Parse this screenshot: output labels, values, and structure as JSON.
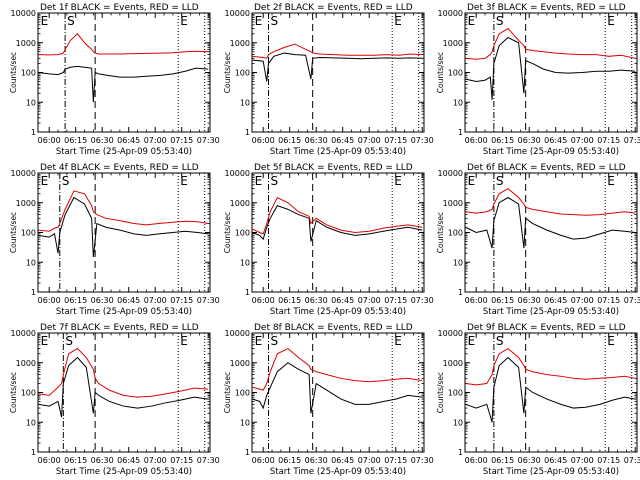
{
  "figure": {
    "start_time": "Start Time (25-Apr-09 05:53:40)",
    "ylabel": "Counts/sec",
    "x_ticks": [
      "06:00",
      "06:15",
      "06:30",
      "06:45",
      "07:00",
      "07:15",
      "07:30"
    ],
    "y_ticks": [
      "1",
      "10",
      "100",
      "1000",
      "10000"
    ],
    "colors": {
      "events": "#000000",
      "lld": "#e00000",
      "axes": "#000000"
    }
  },
  "chart_data": [
    {
      "type": "line",
      "title": "Det 1f BLACK = Events, RED = LLD",
      "xlabel": "Start Time (25-Apr-09 05:53:40)",
      "ylabel": "Counts/sec",
      "y_scale": "log",
      "ylim": [
        1,
        10000
      ],
      "xlim": [
        "05:53:40",
        "07:31:00"
      ],
      "vlines": {
        "dash_dot": [
          "06:09"
        ],
        "dashed": [
          "06:26"
        ],
        "dotted": [
          "07:13",
          "07:28"
        ]
      },
      "markers": [
        {
          "label": "S",
          "x": "06:09"
        },
        {
          "label": "E",
          "x": "07:13"
        },
        {
          "label": "E",
          "x": "05:54"
        }
      ],
      "x": [
        "05:54",
        "06:00",
        "06:05",
        "06:08",
        "06:09",
        "06:12",
        "06:16",
        "06:20",
        "06:24",
        "06:25",
        "06:26",
        "06:28",
        "06:33",
        "06:40",
        "06:48",
        "06:55",
        "07:03",
        "07:10",
        "07:17",
        "07:23",
        "07:30"
      ],
      "series": [
        {
          "name": "Events",
          "values": [
            100,
            90,
            85,
            100,
            130,
            150,
            160,
            150,
            140,
            10,
            100,
            90,
            80,
            70,
            70,
            75,
            80,
            90,
            110,
            140,
            130
          ]
        },
        {
          "name": "LLD",
          "values": [
            400,
            390,
            400,
            450,
            600,
            1200,
            2000,
            1000,
            600,
            500,
            450,
            420,
            420,
            420,
            430,
            440,
            450,
            460,
            500,
            520,
            500
          ]
        }
      ]
    },
    {
      "type": "line",
      "title": "Det 2f BLACK = Events, RED = LLD",
      "xlabel": "Start Time (25-Apr-09 05:53:40)",
      "ylabel": "Counts/sec",
      "y_scale": "log",
      "ylim": [
        1,
        10000
      ],
      "xlim": [
        "05:53:40",
        "07:31:00"
      ],
      "vlines": {
        "dash_dot": [
          "06:03"
        ],
        "dashed": [
          "06:28"
        ],
        "dotted": [
          "07:13",
          "07:28"
        ]
      },
      "markers": [
        {
          "label": "S",
          "x": "06:03"
        },
        {
          "label": "E",
          "x": "07:13"
        },
        {
          "label": "E",
          "x": "05:54"
        }
      ],
      "x": [
        "05:54",
        "06:00",
        "06:02",
        "06:03",
        "06:06",
        "06:12",
        "06:18",
        "06:24",
        "06:27",
        "06:28",
        "06:32",
        "06:40",
        "06:48",
        "06:55",
        "07:03",
        "07:10",
        "07:17",
        "07:23",
        "07:30"
      ],
      "series": [
        {
          "name": "Events",
          "values": [
            260,
            240,
            50,
            200,
            350,
            450,
            400,
            380,
            60,
            300,
            320,
            310,
            300,
            290,
            300,
            310,
            300,
            310,
            300
          ]
        },
        {
          "name": "LLD",
          "values": [
            350,
            320,
            300,
            400,
            500,
            700,
            900,
            600,
            500,
            450,
            420,
            400,
            380,
            380,
            380,
            400,
            380,
            420,
            400
          ]
        }
      ]
    },
    {
      "type": "line",
      "title": "Det 3f BLACK = Events, RED = LLD",
      "xlabel": "Start Time (25-Apr-09 05:53:40)",
      "ylabel": "Counts/sec",
      "y_scale": "log",
      "ylim": [
        1,
        10000
      ],
      "xlim": [
        "05:53:40",
        "07:31:00"
      ],
      "vlines": {
        "dash_dot": [
          "06:10"
        ],
        "dashed": [
          "06:28"
        ],
        "dotted": [
          "07:13",
          "07:28"
        ]
      },
      "markers": [
        {
          "label": "S",
          "x": "06:10"
        },
        {
          "label": "E",
          "x": "07:13"
        },
        {
          "label": "E",
          "x": "05:54"
        }
      ],
      "x": [
        "05:54",
        "06:00",
        "06:05",
        "06:08",
        "06:09",
        "06:10",
        "06:13",
        "06:18",
        "06:24",
        "06:27",
        "06:28",
        "06:32",
        "06:38",
        "06:45",
        "06:52",
        "07:00",
        "07:08",
        "07:15",
        "07:22",
        "07:30"
      ],
      "series": [
        {
          "name": "Events",
          "values": [
            60,
            50,
            55,
            70,
            12,
            200,
            800,
            1500,
            1000,
            20,
            250,
            200,
            130,
            100,
            95,
            100,
            110,
            110,
            120,
            110
          ]
        },
        {
          "name": "LLD",
          "values": [
            300,
            280,
            300,
            400,
            500,
            800,
            2000,
            3000,
            1200,
            800,
            600,
            550,
            500,
            450,
            420,
            400,
            400,
            350,
            380,
            300
          ]
        }
      ]
    },
    {
      "type": "line",
      "title": "Det 4f BLACK = Events, RED = LLD",
      "xlabel": "Start Time (25-Apr-09 05:53:40)",
      "ylabel": "Counts/sec",
      "y_scale": "log",
      "ylim": [
        1,
        10000
      ],
      "xlim": [
        "05:53:40",
        "07:31:00"
      ],
      "vlines": {
        "dash_dot": [
          "06:06"
        ],
        "dashed": [
          "06:26"
        ],
        "dotted": [
          "07:13",
          "07:28"
        ]
      },
      "markers": [
        {
          "label": "S",
          "x": "06:06"
        },
        {
          "label": "E",
          "x": "07:13"
        },
        {
          "label": "E",
          "x": "05:54"
        }
      ],
      "x": [
        "05:54",
        "06:00",
        "06:03",
        "06:05",
        "06:06",
        "06:09",
        "06:14",
        "06:20",
        "06:24",
        "06:25",
        "06:27",
        "06:32",
        "06:40",
        "06:48",
        "06:55",
        "07:02",
        "07:10",
        "07:17",
        "07:24",
        "07:30"
      ],
      "series": [
        {
          "name": "Events",
          "values": [
            80,
            70,
            90,
            20,
            100,
            400,
            1500,
            900,
            300,
            15,
            200,
            150,
            120,
            90,
            80,
            90,
            100,
            110,
            100,
            90
          ]
        },
        {
          "name": "LLD",
          "values": [
            120,
            110,
            140,
            150,
            200,
            600,
            2500,
            2000,
            800,
            500,
            400,
            300,
            250,
            200,
            180,
            200,
            220,
            240,
            230,
            200
          ]
        }
      ]
    },
    {
      "type": "line",
      "title": "Det 5f BLACK = Events, RED = LLD",
      "xlabel": "Start Time (25-Apr-09 05:53:40)",
      "ylabel": "Counts/sec",
      "y_scale": "log",
      "ylim": [
        1,
        10000
      ],
      "xlim": [
        "05:53:40",
        "07:31:00"
      ],
      "vlines": {
        "dash_dot": [
          "06:03"
        ],
        "dashed": [
          "06:28"
        ],
        "dotted": [
          "07:13",
          "07:28"
        ]
      },
      "markers": [
        {
          "label": "S",
          "x": "06:03"
        },
        {
          "label": "E",
          "x": "07:13"
        },
        {
          "label": "E",
          "x": "05:54"
        }
      ],
      "x": [
        "05:54",
        "05:58",
        "06:00",
        "06:02",
        "06:04",
        "06:08",
        "06:14",
        "06:20",
        "06:26",
        "06:27",
        "06:30",
        "06:36",
        "06:44",
        "06:52",
        "07:00",
        "07:08",
        "07:15",
        "07:22",
        "07:30"
      ],
      "series": [
        {
          "name": "Events",
          "values": [
            100,
            80,
            60,
            150,
            300,
            800,
            600,
            400,
            300,
            50,
            250,
            150,
            100,
            80,
            90,
            110,
            130,
            150,
            120
          ]
        },
        {
          "name": "LLD",
          "values": [
            130,
            100,
            90,
            200,
            500,
            1500,
            1000,
            500,
            350,
            200,
            300,
            180,
            120,
            100,
            110,
            140,
            160,
            180,
            150
          ]
        }
      ]
    },
    {
      "type": "line",
      "title": "Det 6f BLACK = Events, RED = LLD",
      "xlabel": "Start Time (25-Apr-09 05:53:40)",
      "ylabel": "Counts/sec",
      "y_scale": "log",
      "ylim": [
        1,
        10000
      ],
      "xlim": [
        "05:53:40",
        "07:31:00"
      ],
      "vlines": {
        "dash_dot": [
          "06:10"
        ],
        "dashed": [
          "06:28"
        ],
        "dotted": [
          "07:13",
          "07:28"
        ]
      },
      "markers": [
        {
          "label": "S",
          "x": "06:10"
        },
        {
          "label": "E",
          "x": "07:13"
        },
        {
          "label": "E",
          "x": "05:54"
        }
      ],
      "x": [
        "05:54",
        "06:00",
        "06:06",
        "06:09",
        "06:10",
        "06:13",
        "06:18",
        "06:24",
        "06:27",
        "06:28",
        "06:32",
        "06:40",
        "06:48",
        "06:55",
        "07:02",
        "07:10",
        "07:17",
        "07:24",
        "07:30"
      ],
      "series": [
        {
          "name": "Events",
          "values": [
            150,
            100,
            120,
            30,
            250,
            1000,
            1500,
            900,
            30,
            300,
            200,
            120,
            80,
            60,
            65,
            90,
            120,
            110,
            100
          ]
        },
        {
          "name": "LLD",
          "values": [
            500,
            450,
            500,
            600,
            900,
            2000,
            3000,
            1500,
            900,
            700,
            600,
            500,
            420,
            400,
            380,
            400,
            450,
            500,
            450
          ]
        }
      ]
    },
    {
      "type": "line",
      "title": "Det 7f BLACK = Events, RED = LLD",
      "xlabel": "Start Time (25-Apr-09 05:53:40)",
      "ylabel": "Counts/sec",
      "y_scale": "log",
      "ylim": [
        1,
        10000
      ],
      "xlim": [
        "05:53:40",
        "07:31:00"
      ],
      "vlines": {
        "dash_dot": [
          "06:08"
        ],
        "dashed": [
          "06:26"
        ],
        "dotted": [
          "07:13",
          "07:28"
        ]
      },
      "markers": [
        {
          "label": "S",
          "x": "06:08"
        },
        {
          "label": "E",
          "x": "07:13"
        },
        {
          "label": "E",
          "x": "05:54"
        }
      ],
      "x": [
        "05:54",
        "06:00",
        "06:05",
        "06:07",
        "06:08",
        "06:11",
        "06:16",
        "06:21",
        "06:25",
        "06:26",
        "06:28",
        "06:34",
        "06:42",
        "06:50",
        "06:58",
        "07:06",
        "07:14",
        "07:22",
        "07:30"
      ],
      "series": [
        {
          "name": "Events",
          "values": [
            40,
            35,
            50,
            15,
            200,
            800,
            1500,
            700,
            20,
            100,
            80,
            50,
            35,
            30,
            35,
            45,
            55,
            70,
            60
          ]
        },
        {
          "name": "LLD",
          "values": [
            90,
            80,
            150,
            200,
            400,
            2000,
            3000,
            1500,
            600,
            300,
            200,
            120,
            80,
            70,
            75,
            90,
            110,
            140,
            130
          ]
        }
      ]
    },
    {
      "type": "line",
      "title": "Det 8f BLACK = Events, RED = LLD",
      "xlabel": "Start Time (25-Apr-09 05:53:40)",
      "ylabel": "Counts/sec",
      "y_scale": "log",
      "ylim": [
        1,
        10000
      ],
      "xlim": [
        "05:53:40",
        "07:31:00"
      ],
      "vlines": {
        "dash_dot": [
          "06:03"
        ],
        "dashed": [
          "06:28"
        ],
        "dotted": [
          "07:13",
          "07:28"
        ]
      },
      "markers": [
        {
          "label": "S",
          "x": "06:03"
        },
        {
          "label": "E",
          "x": "07:13"
        },
        {
          "label": "E",
          "x": "05:54"
        }
      ],
      "x": [
        "05:54",
        "05:58",
        "06:00",
        "06:02",
        "06:04",
        "06:08",
        "06:14",
        "06:20",
        "06:26",
        "06:27",
        "06:30",
        "06:36",
        "06:44",
        "06:52",
        "07:00",
        "07:08",
        "07:15",
        "07:22",
        "07:30"
      ],
      "series": [
        {
          "name": "Events",
          "values": [
            60,
            50,
            30,
            80,
            150,
            500,
            1000,
            600,
            400,
            20,
            200,
            120,
            60,
            40,
            40,
            50,
            60,
            80,
            70
          ]
        },
        {
          "name": "LLD",
          "values": [
            150,
            130,
            120,
            200,
            500,
            2000,
            3000,
            1500,
            800,
            600,
            500,
            400,
            300,
            250,
            230,
            250,
            280,
            300,
            250
          ]
        }
      ]
    },
    {
      "type": "line",
      "title": "Det 9f BLACK = Events, RED = LLD",
      "xlabel": "Start Time (25-Apr-09 05:53:40)",
      "ylabel": "Counts/sec",
      "y_scale": "log",
      "ylim": [
        1,
        10000
      ],
      "xlim": [
        "05:53:40",
        "07:31:00"
      ],
      "vlines": {
        "dash_dot": [
          "06:10"
        ],
        "dashed": [
          "06:28"
        ],
        "dotted": [
          "07:13",
          "07:28"
        ]
      },
      "markers": [
        {
          "label": "S",
          "x": "06:10"
        },
        {
          "label": "E",
          "x": "07:13"
        },
        {
          "label": "E",
          "x": "05:54"
        }
      ],
      "x": [
        "05:54",
        "06:00",
        "06:06",
        "06:09",
        "06:10",
        "06:13",
        "06:18",
        "06:24",
        "06:27",
        "06:28",
        "06:32",
        "06:40",
        "06:48",
        "06:55",
        "07:02",
        "07:10",
        "07:17",
        "07:24",
        "07:30"
      ],
      "series": [
        {
          "name": "Events",
          "values": [
            40,
            30,
            40,
            10,
            150,
            800,
            1500,
            700,
            20,
            150,
            100,
            60,
            40,
            30,
            32,
            40,
            55,
            70,
            60
          ]
        },
        {
          "name": "LLD",
          "values": [
            200,
            180,
            200,
            400,
            800,
            2000,
            3000,
            1500,
            800,
            600,
            500,
            400,
            350,
            300,
            280,
            300,
            320,
            350,
            300
          ]
        }
      ]
    }
  ]
}
